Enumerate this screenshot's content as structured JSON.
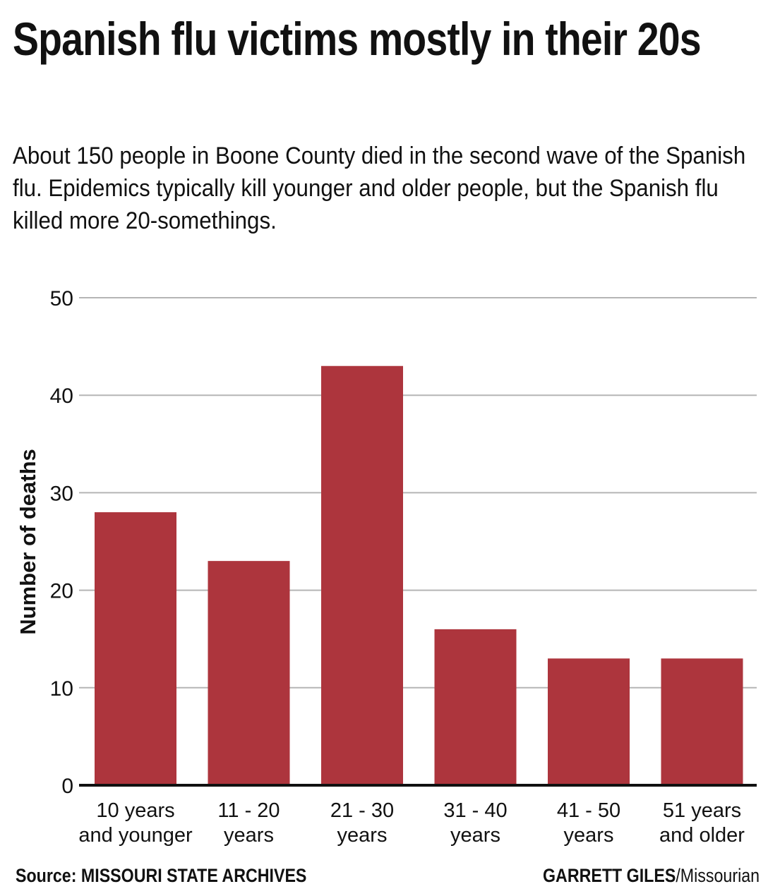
{
  "title": "Spanish flu victims mostly in their 20s",
  "subtitle": "About 150 people in Boone County died in the second wave of the Spanish flu. Epidemics typically kill younger and older people, but the Spanish flu killed more 20-somethings.",
  "footer": {
    "source": "Source: MISSOURI STATE ARCHIVES",
    "credit_name": "GARRETT GILES",
    "credit_org": "/Missourian"
  },
  "colors": {
    "bar": "#ad353d",
    "grid": "#b5b5b5",
    "axis": "#111111"
  },
  "chart_data": {
    "type": "bar",
    "title": "Spanish flu victims mostly in their 20s",
    "xlabel": "",
    "ylabel": "Number of deaths",
    "ylim": [
      0,
      50
    ],
    "yticks": [
      0,
      10,
      20,
      30,
      40,
      50
    ],
    "grid": true,
    "categories": [
      [
        "10 years",
        "and younger"
      ],
      [
        "11 - 20",
        "years"
      ],
      [
        "21 - 30",
        "years"
      ],
      [
        "31 - 40",
        "years"
      ],
      [
        "41 - 50",
        "years"
      ],
      [
        "51 years",
        "and older"
      ]
    ],
    "values": [
      28,
      23,
      43,
      16,
      13,
      13
    ]
  }
}
